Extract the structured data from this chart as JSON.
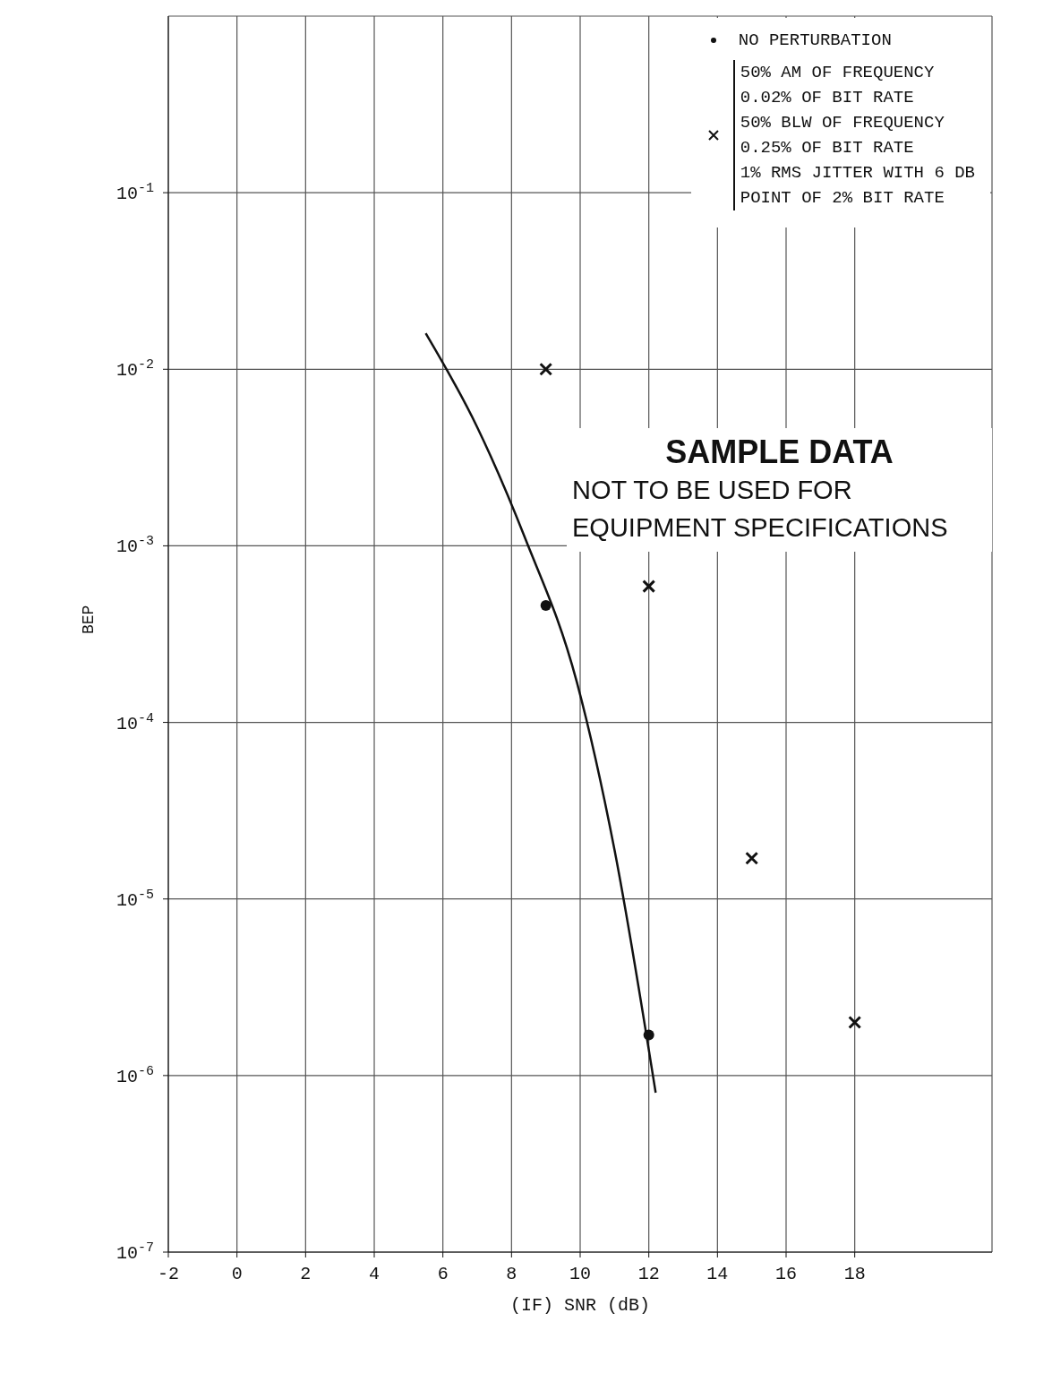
{
  "chart_data": {
    "type": "scatter",
    "xlabel": "(IF) SNR (dB)",
    "ylabel": "BEP",
    "log": "y",
    "grid": true,
    "legend": "top right",
    "xlim": [
      -2,
      22
    ],
    "xticks": [
      -2,
      0,
      2,
      4,
      6,
      8,
      10,
      12,
      14,
      16,
      18
    ],
    "ylim": [
      1e-07,
      1
    ],
    "yticks": [
      {
        "value": 1e-07,
        "label": "10$^{-7}$"
      },
      {
        "value": 1e-06,
        "label": "10$^{-6}$"
      },
      {
        "value": 1e-05,
        "label": "10$^{-5}$"
      },
      {
        "value": 0.0001,
        "label": "10$^{-4}$"
      },
      {
        "value": 0.001,
        "label": "10$^{-3}$"
      },
      {
        "value": 0.01,
        "label": "10$^{-2}$"
      },
      {
        "value": 0.1,
        "label": "10$^{-1}$"
      }
    ],
    "series": [
      {
        "type": "line",
        "color": "#111111",
        "marker": "none",
        "line_style": "solid",
        "x": [
          5.5,
          7,
          8.4,
          9.9,
          11,
          12.2
        ],
        "values": [
          0.016,
          0.0047,
          0.0011,
          0.00017,
          1.9e-05,
          8e-07
        ]
      },
      {
        "name": "NO PERTURBATION",
        "color": "#111111",
        "marker": "circle",
        "x": [
          9,
          12
        ],
        "values": [
          0.00046,
          1.7e-06
        ]
      },
      {
        "name": "50% AM OF FREQUENCY\n0.02% OF BIT RATE\n50% BLW OF FREQUENCY\n0.25% OF BIT RATE\n1% RMS JITTER WITH 6 DB\nPOINT OF 2% BIT RATE",
        "color": "#111111",
        "marker": "cross",
        "x": [
          9,
          12,
          15,
          18
        ],
        "values": [
          0.01,
          0.00059,
          1.7e-05,
          2e-06
        ]
      }
    ],
    "annotations": [
      "SAMPLE DATA\nNOT TO BE USED FOR\nEQUIPMENT SPECIFICATIONS"
    ]
  }
}
